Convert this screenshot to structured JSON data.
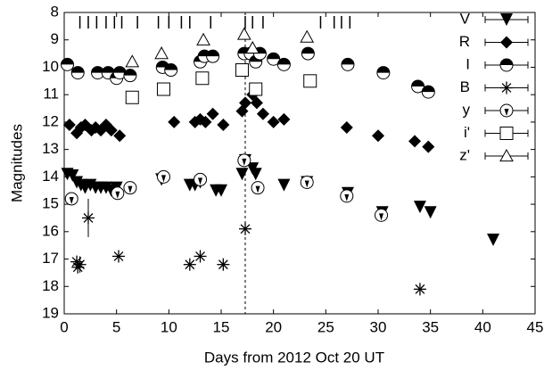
{
  "chart_data": {
    "type": "scatter",
    "x_label": "Days from 2012 Oct 20 UT",
    "y_label": "Magnitudes",
    "xlim": [
      0,
      45
    ],
    "xticks": [
      0,
      5,
      10,
      15,
      20,
      25,
      30,
      35,
      40,
      45
    ],
    "ylim": [
      19,
      8
    ],
    "yticks": [
      8,
      9,
      10,
      11,
      12,
      13,
      14,
      15,
      16,
      17,
      18,
      19
    ],
    "y_inverted": true,
    "legend": "upper right",
    "epochs": [
      1.5,
      2.3,
      3.1,
      4.0,
      4.8,
      5.5,
      7.0,
      9.0,
      10.0,
      11.2,
      12.0,
      14.0,
      17.3,
      18.0,
      19.0,
      24.5,
      25.8,
      26.5,
      27.3
    ],
    "vline": 17.3,
    "series": [
      {
        "name": "V",
        "marker": "tri-down",
        "color": "#000000",
        "x": [
          0.3,
          0.8,
          1.2,
          1.6,
          2.0,
          2.5,
          3.0,
          3.5,
          4.0,
          4.5,
          5.0,
          9.3,
          12.0,
          12.5,
          13.0,
          14.5,
          15.0,
          17.0,
          17.3,
          18.0,
          18.3,
          21.0,
          23.2,
          27.1,
          30.4,
          34.0,
          35.0,
          41.0
        ],
        "values": [
          13.9,
          13.95,
          14.2,
          14.3,
          14.4,
          14.3,
          14.4,
          14.4,
          14.4,
          14.5,
          14.4,
          14.1,
          14.3,
          14.3,
          14.2,
          14.5,
          14.5,
          13.9,
          13.4,
          13.7,
          13.9,
          14.3,
          14.2,
          14.6,
          15.3,
          15.1,
          15.3,
          16.3
        ]
      },
      {
        "name": "R",
        "marker": "diamond",
        "color": "#000000",
        "x": [
          0.5,
          1.2,
          1.6,
          2.0,
          2.6,
          3.0,
          3.5,
          4.0,
          4.5,
          5.3,
          10.5,
          12.5,
          13.0,
          13.5,
          14.2,
          15.2,
          17.0,
          17.3,
          18.0,
          18.4,
          19.0,
          20.0,
          21.0,
          27.0,
          30.0,
          33.5,
          34.8
        ],
        "values": [
          12.1,
          12.4,
          12.2,
          12.1,
          12.3,
          12.2,
          12.3,
          12.1,
          12.3,
          12.5,
          12.0,
          12.0,
          11.9,
          12.0,
          11.7,
          12.1,
          11.6,
          11.3,
          11.0,
          11.3,
          11.7,
          12.0,
          11.9,
          12.2,
          12.5,
          12.7,
          12.9
        ]
      },
      {
        "name": "I",
        "marker": "half-circle",
        "color": "#000000",
        "x": [
          0.3,
          1.3,
          3.2,
          4.2,
          5.0,
          5.3,
          6.3,
          9.4,
          10.2,
          13.0,
          13.4,
          14.2,
          17.2,
          17.8,
          18.3,
          18.7,
          20.0,
          21.0,
          23.3,
          27.1,
          30.5,
          33.8,
          34.8
        ],
        "values": [
          9.9,
          10.2,
          10.2,
          10.2,
          10.4,
          10.2,
          10.3,
          10.0,
          10.1,
          9.8,
          9.6,
          9.6,
          9.5,
          9.5,
          9.8,
          9.5,
          9.7,
          9.9,
          9.5,
          9.9,
          10.2,
          10.7,
          10.9
        ]
      },
      {
        "name": "B",
        "marker": "asterisk",
        "color": "#000000",
        "x": [
          1.2,
          1.3,
          1.5,
          2.3,
          5.2,
          12.0,
          13.0,
          15.2,
          17.3,
          34.0
        ],
        "values": [
          17.1,
          17.3,
          17.2,
          15.5,
          16.9,
          17.2,
          16.9,
          17.2,
          15.9,
          18.1
        ],
        "errors": [
          null,
          null,
          0.3,
          0.7,
          null,
          null,
          null,
          null,
          null,
          null
        ]
      },
      {
        "name": "y",
        "marker": "circle-tri",
        "color": "#000000",
        "x": [
          0.7,
          5.1,
          6.3,
          9.5,
          13.0,
          17.2,
          18.5,
          23.2,
          27.0,
          30.3
        ],
        "values": [
          14.8,
          14.6,
          14.4,
          14.0,
          14.1,
          13.4,
          14.4,
          14.2,
          14.7,
          15.4
        ]
      },
      {
        "name": "i'",
        "marker": "square",
        "color": "#000000",
        "x": [
          6.5,
          9.5,
          13.2,
          17.0,
          18.3,
          23.5
        ],
        "values": [
          11.1,
          10.8,
          10.4,
          10.1,
          10.8,
          10.5
        ]
      },
      {
        "name": "z'",
        "marker": "tri-up",
        "color": "#000000",
        "x": [
          6.5,
          9.3,
          13.3,
          17.2,
          18.0,
          23.2
        ],
        "values": [
          9.8,
          9.5,
          9.0,
          8.8,
          9.3,
          8.9
        ]
      }
    ]
  }
}
